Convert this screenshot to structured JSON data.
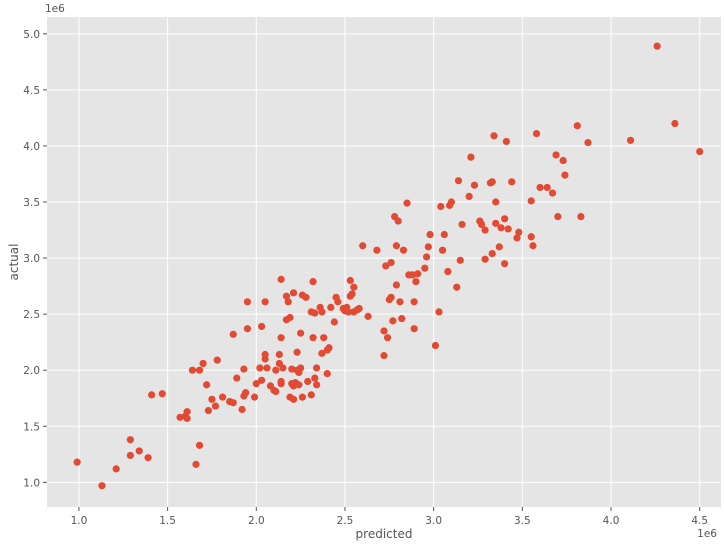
{
  "chart_data": {
    "type": "scatter",
    "title": "",
    "xlabel": "predicted",
    "ylabel": "actual",
    "x_offset_label": "1e6",
    "y_offset_label": "1e6",
    "xlim": [
      0.82,
      4.62
    ],
    "ylim": [
      0.78,
      5.15
    ],
    "x_ticks": [
      1.0,
      1.5,
      2.0,
      2.5,
      3.0,
      3.5,
      4.0,
      4.5
    ],
    "x_tick_labels": [
      "1.0",
      "1.5",
      "2.0",
      "2.5",
      "3.0",
      "3.5",
      "4.0",
      "4.5"
    ],
    "y_ticks": [
      1.0,
      1.5,
      2.0,
      2.5,
      3.0,
      3.5,
      4.0,
      4.5,
      5.0
    ],
    "y_tick_labels": [
      "1.0",
      "1.5",
      "2.0",
      "2.5",
      "3.0",
      "3.5",
      "4.0",
      "4.5",
      "5.0"
    ],
    "grid": true,
    "background_color": "#e5e5e5",
    "grid_color": "#ffffff",
    "marker_color": "#e24a33",
    "points": [
      [
        0.99,
        1.18
      ],
      [
        1.13,
        0.97
      ],
      [
        1.21,
        1.12
      ],
      [
        1.29,
        1.38
      ],
      [
        1.29,
        1.24
      ],
      [
        1.34,
        1.28
      ],
      [
        1.39,
        1.22
      ],
      [
        1.41,
        1.78
      ],
      [
        1.47,
        1.79
      ],
      [
        1.57,
        1.58
      ],
      [
        1.6,
        1.59
      ],
      [
        1.61,
        1.63
      ],
      [
        1.61,
        1.57
      ],
      [
        1.64,
        2.0
      ],
      [
        1.66,
        1.16
      ],
      [
        1.68,
        1.33
      ],
      [
        1.68,
        2.0
      ],
      [
        1.7,
        2.06
      ],
      [
        1.72,
        1.87
      ],
      [
        1.73,
        1.64
      ],
      [
        1.75,
        1.74
      ],
      [
        1.77,
        1.68
      ],
      [
        1.78,
        2.09
      ],
      [
        1.81,
        1.76
      ],
      [
        1.85,
        1.72
      ],
      [
        1.87,
        2.32
      ],
      [
        1.87,
        1.71
      ],
      [
        1.89,
        1.93
      ],
      [
        1.92,
        1.65
      ],
      [
        1.93,
        2.01
      ],
      [
        1.93,
        1.77
      ],
      [
        1.94,
        1.8
      ],
      [
        1.95,
        2.61
      ],
      [
        1.95,
        2.37
      ],
      [
        1.99,
        1.76
      ],
      [
        2.0,
        1.88
      ],
      [
        2.02,
        2.02
      ],
      [
        2.03,
        2.39
      ],
      [
        2.03,
        1.91
      ],
      [
        2.05,
        2.1
      ],
      [
        2.05,
        2.14
      ],
      [
        2.05,
        2.61
      ],
      [
        2.06,
        2.02
      ],
      [
        2.08,
        1.86
      ],
      [
        2.1,
        1.82
      ],
      [
        2.11,
        1.81
      ],
      [
        2.11,
        2.0
      ],
      [
        2.13,
        2.06
      ],
      [
        2.13,
        2.14
      ],
      [
        2.14,
        2.81
      ],
      [
        2.14,
        2.29
      ],
      [
        2.14,
        1.88
      ],
      [
        2.14,
        1.9
      ],
      [
        2.15,
        2.02
      ],
      [
        2.17,
        2.66
      ],
      [
        2.17,
        2.45
      ],
      [
        2.18,
        2.61
      ],
      [
        2.19,
        1.76
      ],
      [
        2.19,
        2.47
      ],
      [
        2.2,
        1.88
      ],
      [
        2.2,
        2.01
      ],
      [
        2.21,
        1.74
      ],
      [
        2.21,
        1.86
      ],
      [
        2.21,
        2.69
      ],
      [
        2.22,
        1.89
      ],
      [
        2.23,
        2.0
      ],
      [
        2.23,
        2.16
      ],
      [
        2.24,
        1.87
      ],
      [
        2.24,
        1.98
      ],
      [
        2.25,
        2.33
      ],
      [
        2.25,
        2.02
      ],
      [
        2.26,
        1.76
      ],
      [
        2.26,
        2.67
      ],
      [
        2.28,
        2.65
      ],
      [
        2.29,
        1.9
      ],
      [
        2.31,
        2.52
      ],
      [
        2.31,
        1.78
      ],
      [
        2.32,
        2.29
      ],
      [
        2.32,
        2.79
      ],
      [
        2.33,
        2.51
      ],
      [
        2.33,
        1.93
      ],
      [
        2.34,
        1.87
      ],
      [
        2.34,
        2.02
      ],
      [
        2.36,
        2.56
      ],
      [
        2.37,
        2.52
      ],
      [
        2.37,
        2.15
      ],
      [
        2.38,
        2.29
      ],
      [
        2.4,
        2.18
      ],
      [
        2.4,
        1.97
      ],
      [
        2.41,
        2.2
      ],
      [
        2.42,
        2.56
      ],
      [
        2.44,
        2.43
      ],
      [
        2.45,
        2.65
      ],
      [
        2.46,
        2.61
      ],
      [
        2.49,
        2.55
      ],
      [
        2.5,
        2.53
      ],
      [
        2.51,
        2.56
      ],
      [
        2.52,
        2.52
      ],
      [
        2.53,
        2.8
      ],
      [
        2.53,
        2.66
      ],
      [
        2.54,
        2.68
      ],
      [
        2.55,
        2.74
      ],
      [
        2.55,
        2.52
      ],
      [
        2.57,
        2.54
      ],
      [
        2.58,
        2.55
      ],
      [
        2.6,
        3.11
      ],
      [
        2.63,
        2.48
      ],
      [
        2.68,
        3.07
      ],
      [
        2.72,
        2.13
      ],
      [
        2.72,
        2.35
      ],
      [
        2.73,
        2.93
      ],
      [
        2.74,
        2.29
      ],
      [
        2.75,
        2.63
      ],
      [
        2.76,
        2.96
      ],
      [
        2.76,
        2.65
      ],
      [
        2.77,
        2.44
      ],
      [
        2.78,
        3.37
      ],
      [
        2.79,
        3.11
      ],
      [
        2.79,
        2.76
      ],
      [
        2.8,
        3.33
      ],
      [
        2.81,
        2.61
      ],
      [
        2.82,
        2.46
      ],
      [
        2.83,
        3.07
      ],
      [
        2.85,
        3.49
      ],
      [
        2.86,
        2.85
      ],
      [
        2.88,
        2.85
      ],
      [
        2.89,
        2.37
      ],
      [
        2.89,
        2.61
      ],
      [
        2.9,
        2.79
      ],
      [
        2.91,
        2.86
      ],
      [
        2.95,
        2.91
      ],
      [
        2.96,
        3.01
      ],
      [
        2.97,
        3.1
      ],
      [
        2.98,
        3.21
      ],
      [
        3.01,
        2.22
      ],
      [
        3.03,
        2.52
      ],
      [
        3.04,
        3.46
      ],
      [
        3.05,
        3.07
      ],
      [
        3.06,
        3.21
      ],
      [
        3.08,
        2.88
      ],
      [
        3.09,
        3.47
      ],
      [
        3.1,
        3.5
      ],
      [
        3.13,
        2.74
      ],
      [
        3.14,
        3.69
      ],
      [
        3.15,
        2.98
      ],
      [
        3.16,
        3.3
      ],
      [
        3.2,
        3.55
      ],
      [
        3.21,
        3.9
      ],
      [
        3.23,
        3.65
      ],
      [
        3.26,
        3.33
      ],
      [
        3.27,
        3.3
      ],
      [
        3.29,
        3.25
      ],
      [
        3.29,
        2.99
      ],
      [
        3.32,
        3.67
      ],
      [
        3.33,
        3.68
      ],
      [
        3.33,
        3.04
      ],
      [
        3.34,
        4.09
      ],
      [
        3.35,
        3.5
      ],
      [
        3.35,
        3.31
      ],
      [
        3.37,
        3.1
      ],
      [
        3.38,
        3.27
      ],
      [
        3.4,
        3.35
      ],
      [
        3.4,
        2.95
      ],
      [
        3.41,
        4.04
      ],
      [
        3.42,
        3.26
      ],
      [
        3.44,
        3.68
      ],
      [
        3.47,
        3.18
      ],
      [
        3.48,
        3.23
      ],
      [
        3.55,
        3.51
      ],
      [
        3.55,
        3.19
      ],
      [
        3.56,
        3.11
      ],
      [
        3.58,
        4.11
      ],
      [
        3.6,
        3.63
      ],
      [
        3.64,
        3.63
      ],
      [
        3.67,
        3.58
      ],
      [
        3.69,
        3.92
      ],
      [
        3.7,
        3.37
      ],
      [
        3.73,
        3.87
      ],
      [
        3.74,
        3.74
      ],
      [
        3.81,
        4.18
      ],
      [
        3.83,
        3.37
      ],
      [
        3.87,
        4.03
      ],
      [
        4.11,
        4.05
      ],
      [
        4.26,
        4.89
      ],
      [
        4.36,
        4.2
      ],
      [
        4.5,
        3.95
      ]
    ]
  }
}
